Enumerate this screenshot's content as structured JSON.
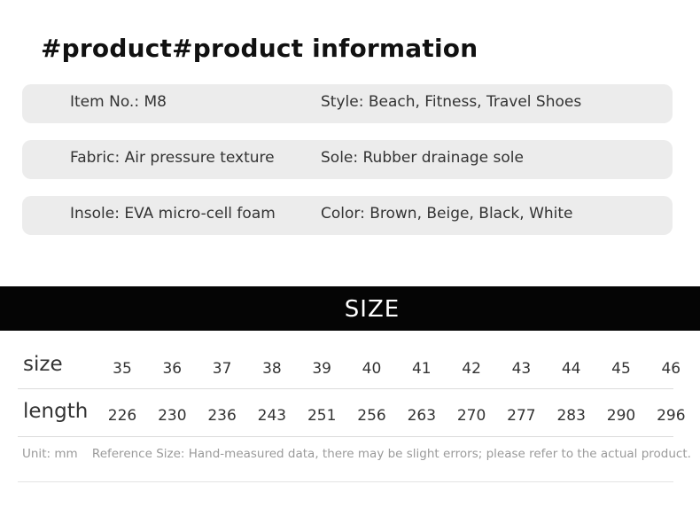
{
  "title": "#product#product information",
  "info_rows": [
    {
      "left": "Item No.: M8",
      "right": "Style: Beach, Fitness, Travel Shoes"
    },
    {
      "left": "Fabric: Air pressure texture",
      "right": "Sole: Rubber drainage sole"
    },
    {
      "left": "Insole: EVA micro-cell foam",
      "right": "Color: Brown, Beige, Black, White"
    }
  ],
  "size_banner": "SIZE",
  "size_table": {
    "size_label": "size",
    "length_label": "length",
    "sizes": [
      "35",
      "36",
      "37",
      "38",
      "39",
      "40",
      "41",
      "42",
      "43",
      "44",
      "45",
      "46"
    ],
    "lengths": [
      "226",
      "230",
      "236",
      "243",
      "251",
      "256",
      "263",
      "270",
      "277",
      "283",
      "290",
      "296"
    ]
  },
  "note": {
    "unit": "Unit: mm",
    "reference": "Reference Size: Hand-measured data, there may be slight errors; please refer to the actual product."
  }
}
